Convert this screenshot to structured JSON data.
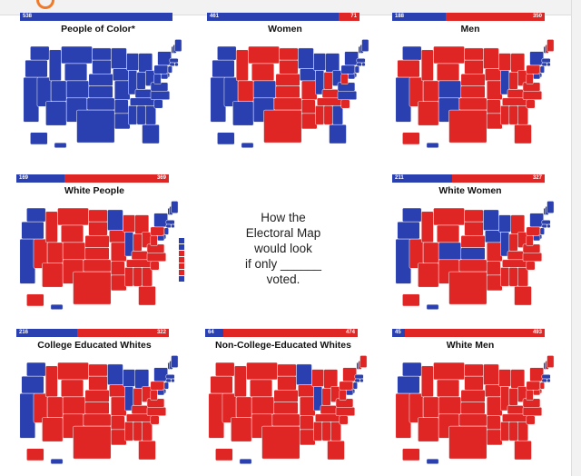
{
  "colors": {
    "dem": "#2a3fb0",
    "rep": "#e02525",
    "line": "#ffffff"
  },
  "center_caption": {
    "line1": "How the",
    "line2": "Electoral Map",
    "line3": "would look",
    "line4": "if only ______",
    "line5": "voted."
  },
  "panels": [
    {
      "title": "People of Color*",
      "dem_ev": "538",
      "rep_ev": "",
      "dem_fraction": 1.0,
      "red_states": []
    },
    {
      "title": "Women",
      "dem_ev": "461",
      "rep_ev": "71",
      "dem_fraction": 0.865,
      "red_states": [
        "MT",
        "ID",
        "WY",
        "UT",
        "ND",
        "SD",
        "NE",
        "KS",
        "OK",
        "TX",
        "LA",
        "AR",
        "MS",
        "AL",
        "TN",
        "KY",
        "WV",
        "IN",
        "SC",
        "MO"
      ]
    },
    {
      "title": "Men",
      "dem_ev": "188",
      "rep_ev": "350",
      "dem_fraction": 0.35,
      "red_states": [
        "OR",
        "ID",
        "NV",
        "MT",
        "WY",
        "UT",
        "AZ",
        "ND",
        "SD",
        "NE",
        "KS",
        "OK",
        "TX",
        "MN",
        "IA",
        "MO",
        "AR",
        "LA",
        "WI",
        "MI",
        "IN",
        "OH",
        "KY",
        "TN",
        "MS",
        "AL",
        "GA",
        "FL",
        "SC",
        "NC",
        "VA",
        "WV",
        "PA",
        "ME",
        "NH",
        "AK"
      ]
    },
    {
      "title": "White People",
      "dem_ev": "169",
      "rep_ev": "369",
      "dem_fraction": 0.315,
      "red_states": [
        "NV",
        "ID",
        "MT",
        "WY",
        "UT",
        "AZ",
        "NM",
        "CO",
        "ND",
        "SD",
        "NE",
        "KS",
        "OK",
        "TX",
        "IA",
        "MO",
        "AR",
        "LA",
        "WI",
        "MI",
        "IN",
        "OH",
        "KY",
        "TN",
        "MS",
        "AL",
        "GA",
        "FL",
        "SC",
        "NC",
        "VA",
        "WV",
        "PA",
        "AK"
      ]
    },
    {
      "title": "White Women",
      "dem_ev": "211",
      "rep_ev": "327",
      "dem_fraction": 0.39,
      "red_states": [
        "ID",
        "MT",
        "WY",
        "UT",
        "NV",
        "AZ",
        "NM",
        "ND",
        "SD",
        "NE",
        "OK",
        "TX",
        "MO",
        "AR",
        "LA",
        "IN",
        "OH",
        "KY",
        "TN",
        "MS",
        "AL",
        "GA",
        "FL",
        "SC",
        "NC",
        "VA",
        "WV",
        "PA",
        "MI",
        "AK"
      ]
    },
    {
      "title": "College Educated Whites",
      "dem_ev": "216",
      "rep_ev": "322",
      "dem_fraction": 0.4,
      "red_states": [
        "NV",
        "ID",
        "MT",
        "WY",
        "UT",
        "AZ",
        "NM",
        "CO",
        "ND",
        "SD",
        "NE",
        "KS",
        "OK",
        "TX",
        "IA",
        "MO",
        "AR",
        "LA",
        "IN",
        "OH",
        "KY",
        "TN",
        "MS",
        "AL",
        "GA",
        "FL",
        "SC",
        "NC",
        "VA",
        "WV",
        "PA",
        "AK"
      ]
    },
    {
      "title": "Non-College-Educated Whites",
      "dem_ev": "64",
      "rep_ev": "474",
      "dem_fraction": 0.12,
      "red_states": [
        "WA",
        "OR",
        "CA",
        "NV",
        "ID",
        "MT",
        "WY",
        "UT",
        "AZ",
        "NM",
        "CO",
        "ND",
        "SD",
        "NE",
        "KS",
        "OK",
        "TX",
        "IA",
        "MO",
        "AR",
        "LA",
        "WI",
        "MI",
        "IN",
        "OH",
        "KY",
        "TN",
        "MS",
        "AL",
        "GA",
        "FL",
        "SC",
        "NC",
        "VA",
        "WV",
        "PA",
        "NY",
        "ME",
        "NH",
        "AK"
      ]
    },
    {
      "title": "White Men",
      "dem_ev": "45",
      "rep_ev": "493",
      "dem_fraction": 0.085,
      "red_states": [
        "CA",
        "NV",
        "ID",
        "MT",
        "WY",
        "UT",
        "AZ",
        "NM",
        "CO",
        "ND",
        "SD",
        "NE",
        "KS",
        "OK",
        "TX",
        "MN",
        "IA",
        "MO",
        "AR",
        "LA",
        "WI",
        "MI",
        "IL",
        "IN",
        "OH",
        "KY",
        "TN",
        "MS",
        "AL",
        "GA",
        "FL",
        "SC",
        "NC",
        "VA",
        "WV",
        "PA",
        "NY",
        "ME",
        "NH",
        "NJ",
        "MD",
        "DE",
        "AK"
      ]
    }
  ]
}
